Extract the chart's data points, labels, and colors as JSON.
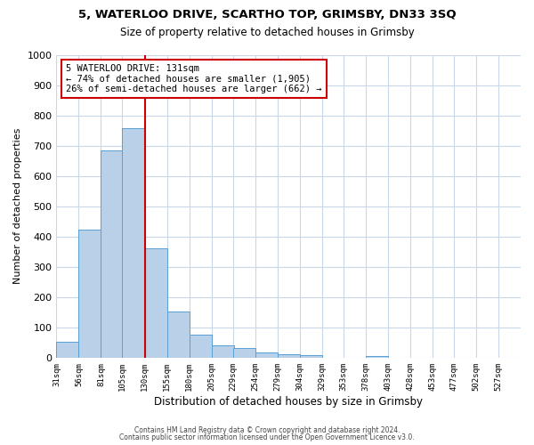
{
  "title": "5, WATERLOO DRIVE, SCARTHO TOP, GRIMSBY, DN33 3SQ",
  "subtitle": "Size of property relative to detached houses in Grimsby",
  "xlabel": "Distribution of detached houses by size in Grimsby",
  "ylabel": "Number of detached properties",
  "bar_labels": [
    "31sqm",
    "56sqm",
    "81sqm",
    "105sqm",
    "130sqm",
    "155sqm",
    "180sqm",
    "205sqm",
    "229sqm",
    "254sqm",
    "279sqm",
    "304sqm",
    "329sqm",
    "353sqm",
    "378sqm",
    "403sqm",
    "428sqm",
    "453sqm",
    "477sqm",
    "502sqm",
    "527sqm"
  ],
  "bar_values": [
    52,
    422,
    685,
    757,
    362,
    152,
    75,
    40,
    32,
    18,
    11,
    7,
    0,
    0,
    5,
    0,
    0,
    0,
    0,
    0,
    0
  ],
  "bar_color": "#b8d0e8",
  "bar_edge_color": "#5a9fd4",
  "annotation_title": "5 WATERLOO DRIVE: 131sqm",
  "annotation_line1": "← 74% of detached houses are smaller (1,905)",
  "annotation_line2": "26% of semi-detached houses are larger (662) →",
  "annotation_box_color": "#ffffff",
  "annotation_box_edge_color": "#cc0000",
  "vline_color": "#cc0000",
  "ylim": [
    0,
    1000
  ],
  "yticks": [
    0,
    100,
    200,
    300,
    400,
    500,
    600,
    700,
    800,
    900,
    1000
  ],
  "footer1": "Contains HM Land Registry data © Crown copyright and database right 2024.",
  "footer2": "Contains public sector information licensed under the Open Government Licence v3.0.",
  "bg_color": "#ffffff",
  "grid_color": "#c8d8e8",
  "x_positions": [
    31,
    56,
    81,
    105,
    130,
    155,
    180,
    205,
    229,
    254,
    279,
    304,
    329,
    353,
    378,
    403,
    428,
    453,
    477,
    502,
    527
  ],
  "bin_width": 25,
  "vline_x": 130,
  "xlim_left": 31,
  "xlim_right": 552
}
